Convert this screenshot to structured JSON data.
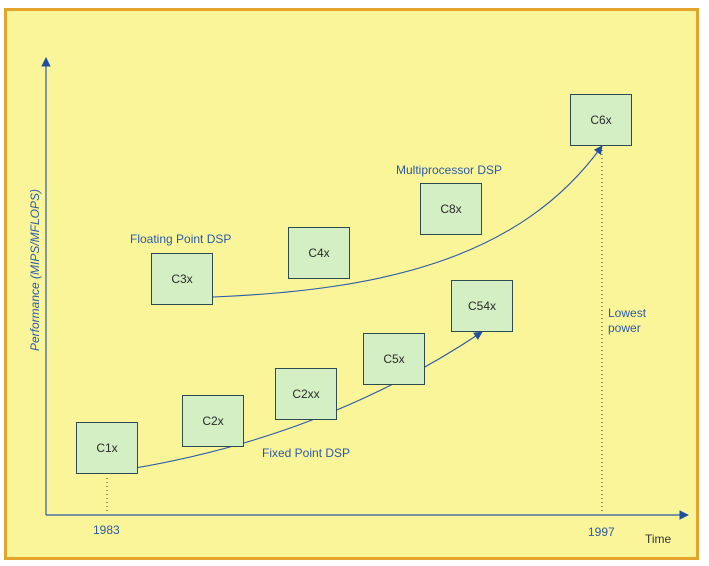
{
  "axes": {
    "y_label": "Performance (MIPS/MFLOPS)",
    "x_label": "Time",
    "start_year": "1983",
    "end_year": "1997"
  },
  "series_labels": {
    "floating": "Floating Point DSP",
    "multiprocessor": "Multiprocessor DSP",
    "fixed": "Fixed Point DSP"
  },
  "annotation": {
    "lowest_power": "Lowest power"
  },
  "chips": {
    "c1x": "C1x",
    "c2x": "C2x",
    "c2xx": "C2xx",
    "c5x": "C5x",
    "c54x": "C54x",
    "c3x": "C3x",
    "c4x": "C4x",
    "c8x": "C8x",
    "c6x": "C6x"
  },
  "colors": {
    "background": "#fbf59a",
    "frame": "#e2a42b",
    "box_fill": "#d5efc4",
    "line": "#2a5aa8"
  }
}
